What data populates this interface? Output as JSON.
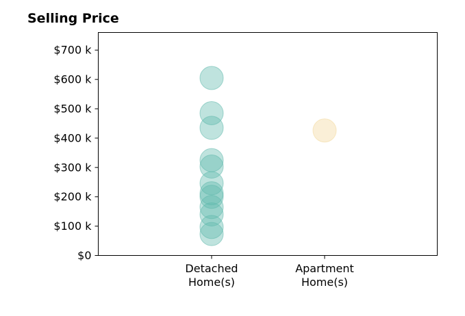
{
  "chart_data": {
    "type": "scatter",
    "title": "Selling Price",
    "xlabel": "",
    "ylabel": "",
    "categories": [
      [
        "Detached",
        "Home(s)"
      ],
      [
        "Apartment",
        "Home(s)"
      ]
    ],
    "ylim": [
      0,
      760000
    ],
    "yticks": [
      0,
      100000,
      200000,
      300000,
      400000,
      500000,
      600000,
      700000
    ],
    "ytick_labels": [
      "$0",
      "$100 k",
      "$200 k",
      "$300 k",
      "$400 k",
      "$500 k",
      "$600 k",
      "$700 k"
    ],
    "grid": false,
    "series": [
      {
        "category_index": 0,
        "color": "#5fb8ac",
        "values": [
          605000,
          485000,
          435000,
          325000,
          303000,
          246000,
          212000,
          200000,
          165000,
          140000,
          97000,
          73000
        ]
      },
      {
        "category_index": 1,
        "color": "#f2d89b",
        "values": [
          426000
        ]
      }
    ]
  }
}
